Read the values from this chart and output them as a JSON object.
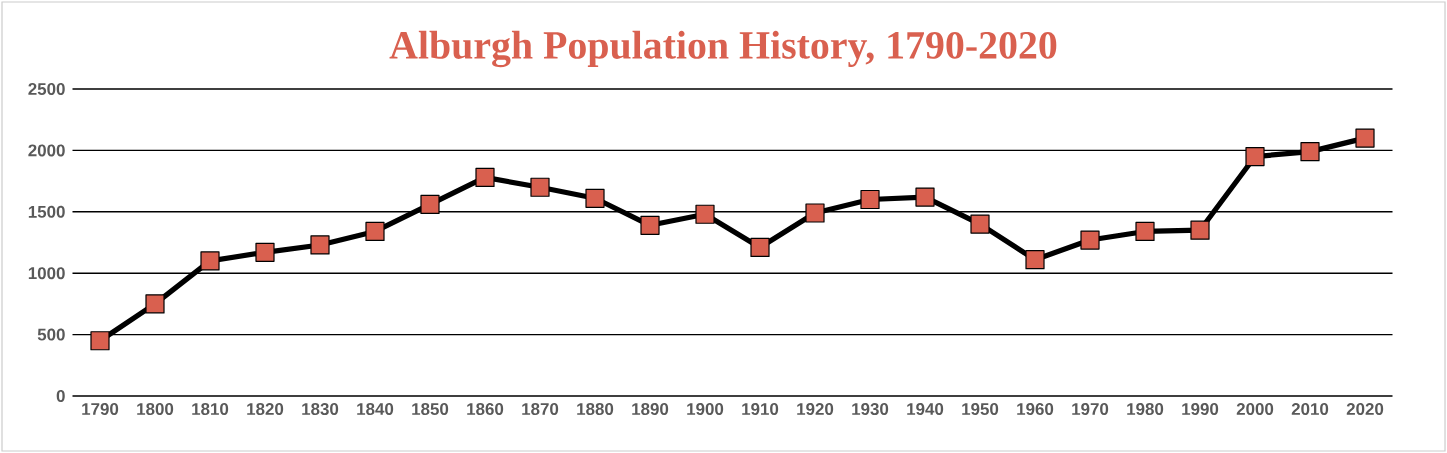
{
  "chart_data": {
    "type": "line",
    "title": "Alburgh Population History, 1790-2020",
    "categories": [
      "1790",
      "1800",
      "1810",
      "1820",
      "1830",
      "1840",
      "1850",
      "1860",
      "1870",
      "1880",
      "1890",
      "1900",
      "1910",
      "1920",
      "1930",
      "1940",
      "1950",
      "1960",
      "1970",
      "1980",
      "1990",
      "2000",
      "2010",
      "2020"
    ],
    "values": [
      450,
      750,
      1100,
      1170,
      1230,
      1340,
      1560,
      1780,
      1700,
      1610,
      1390,
      1480,
      1210,
      1490,
      1600,
      1620,
      1400,
      1110,
      1270,
      1340,
      1350,
      1950,
      1990,
      2100
    ],
    "color": "#d9604f",
    "ylim": [
      0,
      2500
    ],
    "yticks": [
      0,
      500,
      1000,
      1500,
      2000,
      2500
    ],
    "grid": "y",
    "marker": "square",
    "line_style": "solid"
  }
}
